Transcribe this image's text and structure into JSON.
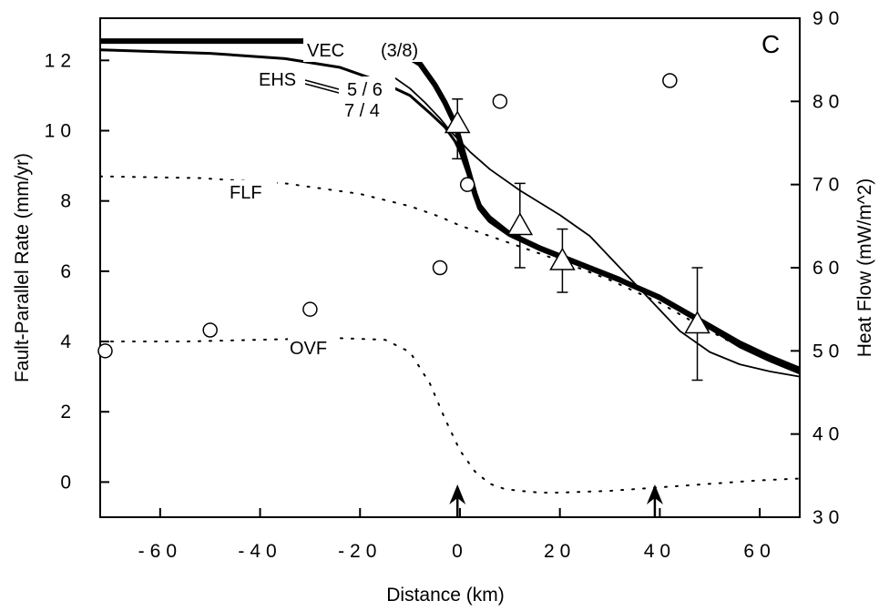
{
  "chart_data": {
    "type": "line",
    "panel_label": "C",
    "xlabel": "Distance (km)",
    "ylabel_left": "Fault-Parallel Rate (mm/yr)",
    "ylabel_right": "Heat Flow (mW/m^2)",
    "xlim": [
      -72,
      68
    ],
    "ylim_left": [
      -1,
      13.2
    ],
    "ylim_right": [
      30,
      90
    ],
    "x_ticks": [
      -60,
      -40,
      -20,
      0,
      20,
      40,
      60
    ],
    "x_tick_labels": [
      "-60",
      "-40",
      "-20",
      "0",
      "20",
      "40",
      "60"
    ],
    "y_left_ticks": [
      0,
      2,
      4,
      6,
      8,
      10,
      12
    ],
    "y_left_tick_labels": [
      "0",
      "2",
      "4",
      "6",
      "8",
      "10",
      "12"
    ],
    "y_right_ticks": [
      30,
      40,
      50,
      60,
      70,
      80,
      90
    ],
    "y_right_tick_labels": [
      "30",
      "40",
      "50",
      "60",
      "70",
      "80",
      "90"
    ],
    "series": [
      {
        "name": "VEC (3/8)",
        "style": "thick",
        "x": [
          -72,
          -30,
          -12,
          -8,
          -5,
          -3,
          -1,
          0,
          1,
          2,
          3,
          4,
          6,
          10,
          16,
          24,
          32,
          40,
          48,
          56,
          62,
          68
        ],
        "y": [
          12.55,
          12.55,
          12.25,
          11.9,
          11.3,
          10.8,
          10.2,
          9.7,
          9.2,
          8.7,
          8.2,
          7.8,
          7.45,
          7.05,
          6.65,
          6.2,
          5.75,
          5.25,
          4.6,
          3.95,
          3.55,
          3.2
        ]
      },
      {
        "name": "EHS 5/6",
        "style": "medium",
        "x": [
          -72,
          -50,
          -35,
          -24,
          -16,
          -10,
          -6,
          -3,
          -1,
          0,
          1,
          2,
          3,
          4,
          6,
          10,
          16,
          24,
          32,
          40,
          48,
          56,
          62,
          68
        ],
        "y": [
          12.3,
          12.2,
          12.05,
          11.8,
          11.4,
          11.0,
          10.5,
          10.1,
          9.7,
          9.4,
          9.0,
          8.6,
          8.2,
          7.9,
          7.55,
          7.1,
          6.7,
          6.25,
          5.8,
          5.2,
          4.55,
          3.85,
          3.45,
          3.1
        ]
      },
      {
        "name": "7/4",
        "style": "thin",
        "x": [
          -13,
          -10,
          -7,
          -4,
          -2,
          0,
          2,
          6,
          12,
          20,
          26,
          32,
          38,
          44,
          50,
          56,
          62,
          68
        ],
        "y": [
          11.5,
          11.2,
          10.8,
          10.35,
          10.0,
          9.7,
          9.4,
          8.9,
          8.3,
          7.6,
          7.0,
          6.1,
          5.2,
          4.3,
          3.7,
          3.35,
          3.15,
          3.0
        ]
      },
      {
        "name": "FLF",
        "style": "dotted",
        "x": [
          -72,
          -52,
          -35,
          -20,
          -10,
          -4,
          0,
          5,
          10,
          20,
          30,
          40,
          48,
          56,
          62,
          68
        ],
        "y": [
          8.7,
          8.65,
          8.5,
          8.2,
          7.85,
          7.55,
          7.3,
          7.05,
          6.8,
          6.3,
          5.75,
          5.1,
          4.45,
          3.85,
          3.45,
          3.2
        ]
      },
      {
        "name": "OVF",
        "style": "dotted",
        "x": [
          -72,
          -55,
          -40,
          -25,
          -15,
          -10,
          -6,
          -3,
          0,
          3,
          6,
          9,
          12,
          16,
          20,
          30,
          40,
          50,
          60,
          68
        ],
        "y": [
          4.0,
          4.0,
          4.05,
          4.1,
          4.05,
          3.7,
          2.8,
          1.8,
          0.9,
          0.3,
          -0.05,
          -0.2,
          -0.25,
          -0.3,
          -0.3,
          -0.25,
          -0.15,
          -0.05,
          0.05,
          0.1
        ]
      }
    ],
    "rate_observations": {
      "name": "triangles",
      "x": [
        -0.5,
        12,
        20.5,
        47.5
      ],
      "y": [
        10.2,
        7.3,
        6.3,
        4.5
      ],
      "error_low": [
        9.2,
        6.1,
        5.4,
        2.9
      ],
      "error_high": [
        10.9,
        8.5,
        7.2,
        6.1
      ]
    },
    "heat_flow_observations": {
      "name": "circles",
      "x": [
        -71,
        -50,
        -30,
        -4,
        1.5,
        8,
        42
      ],
      "y_heatflow": [
        50,
        52.5,
        55,
        60,
        70,
        80,
        82.5
      ]
    },
    "arrows_at_x": [
      -0.5,
      39
    ],
    "annotations": {
      "vec": "VEC",
      "vec_ratio": "(3/8)",
      "ehs": "EHS",
      "ratio_56": "5 / 6",
      "ratio_74": "7 / 4",
      "flf": "FLF",
      "ovf": "OVF"
    }
  }
}
